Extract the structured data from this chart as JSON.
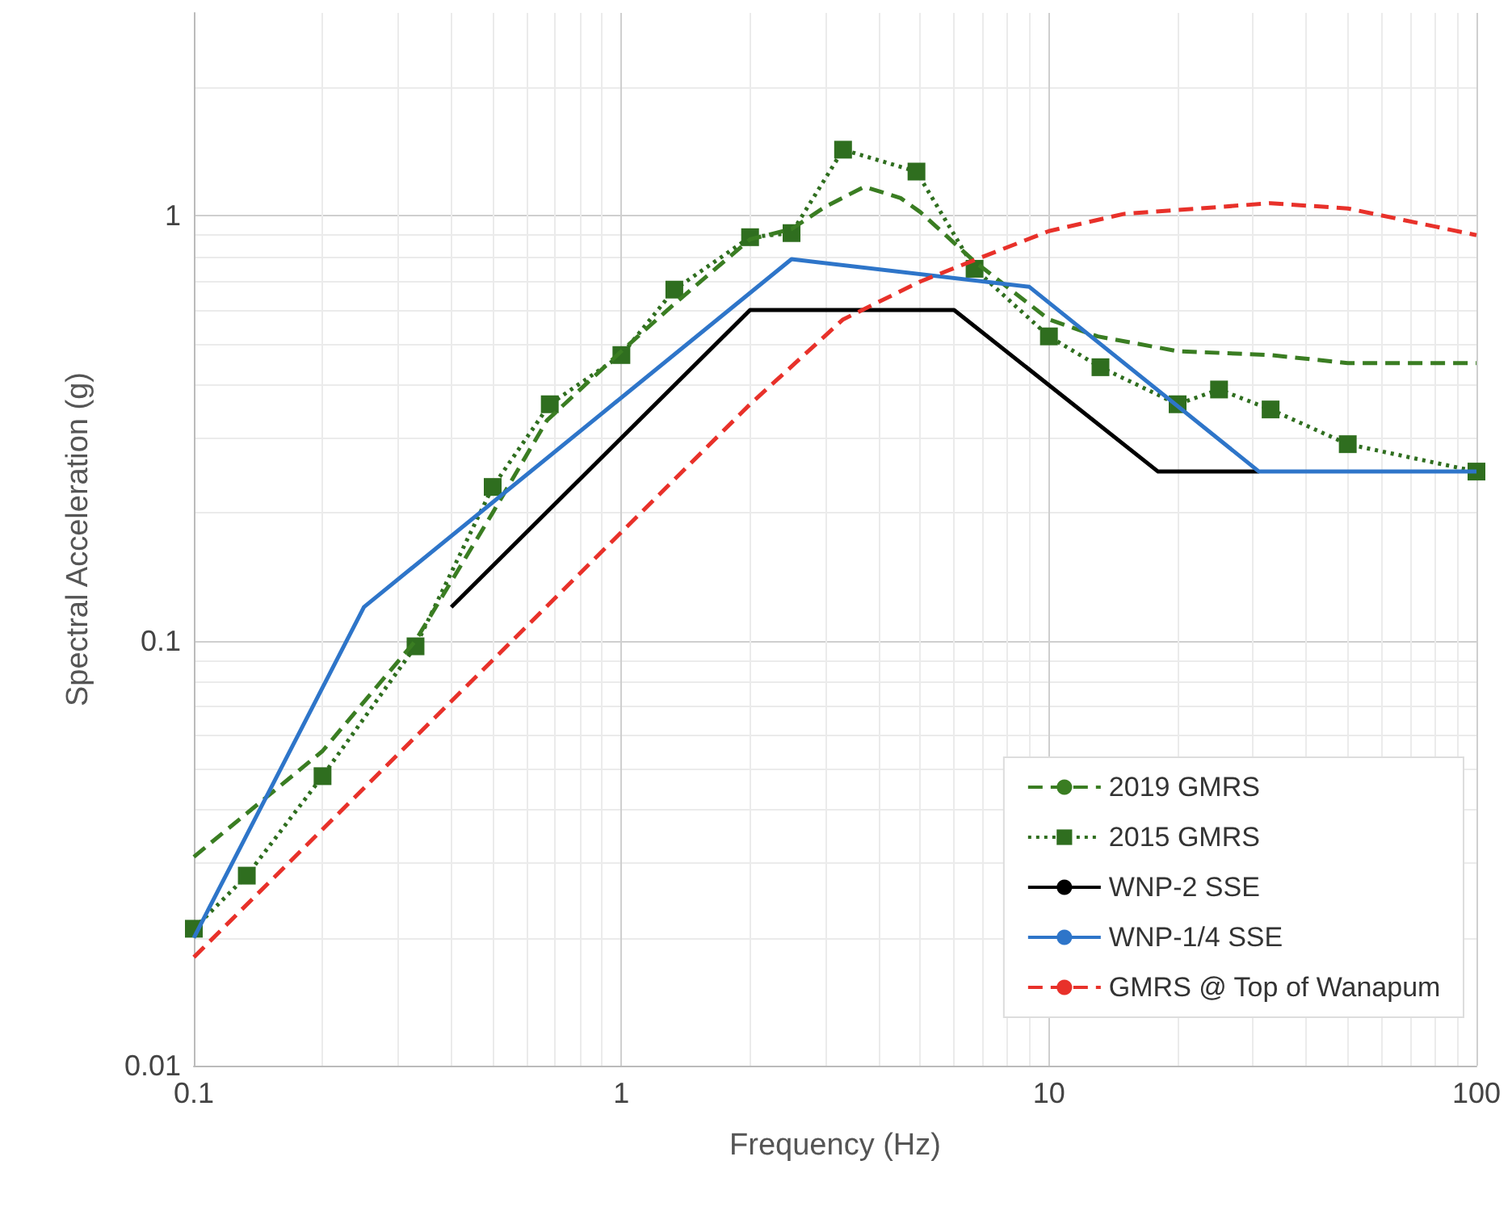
{
  "chart_data": {
    "type": "line",
    "xlabel": "Frequency (Hz)",
    "ylabel": "Spectral Acceleration (g)",
    "log": "xy",
    "grid": true,
    "legend": "bottom right",
    "xlim": [
      0.1,
      100
    ],
    "xticks": [
      0.1,
      1,
      10,
      100
    ],
    "ylim": [
      0.01,
      3
    ],
    "yticks": [
      0.01,
      0.1,
      1
    ],
    "series": [
      {
        "name": "2019 GMRS",
        "color": "#3a7d22",
        "line_style": "dashed",
        "marker": "none",
        "x": [
          0.1,
          0.2,
          0.33,
          0.5,
          0.67,
          1,
          1.33,
          2,
          2.5,
          3,
          3.7,
          4.5,
          5,
          6.7,
          10,
          13,
          20,
          33,
          50,
          100
        ],
        "values": [
          0.031,
          0.055,
          0.1,
          0.2,
          0.33,
          0.48,
          0.62,
          0.88,
          0.93,
          1.05,
          1.17,
          1.1,
          1.02,
          0.78,
          0.57,
          0.52,
          0.48,
          0.47,
          0.45,
          0.45
        ]
      },
      {
        "name": "2015 GMRS",
        "color": "#2f6e1f",
        "line_style": "dotted",
        "marker": "square",
        "x": [
          0.1,
          0.133,
          0.2,
          0.33,
          0.5,
          0.68,
          1,
          1.33,
          2,
          2.5,
          3.3,
          4.9,
          6.7,
          10,
          13.2,
          20,
          25,
          33,
          50,
          100
        ],
        "values": [
          0.021,
          0.028,
          0.048,
          0.097,
          0.23,
          0.36,
          0.47,
          0.67,
          0.89,
          0.91,
          1.43,
          1.27,
          0.75,
          0.52,
          0.44,
          0.36,
          0.39,
          0.35,
          0.29,
          0.25
        ]
      },
      {
        "name": "WNP-2 SSE",
        "color": "#000000",
        "line_style": "solid",
        "marker": "none",
        "x": [
          0.4,
          2,
          6,
          18,
          31
        ],
        "values": [
          0.12,
          0.6,
          0.6,
          0.25,
          0.25
        ]
      },
      {
        "name": "WNP-1/4 SSE",
        "color": "#2e75c9",
        "line_style": "solid",
        "marker": "none",
        "x": [
          0.1,
          0.25,
          2.5,
          9,
          31,
          100
        ],
        "values": [
          0.02,
          0.12,
          0.79,
          0.68,
          0.25,
          0.25
        ]
      },
      {
        "name": "GMRS @ Top of Wanapum",
        "color": "#e8312a",
        "line_style": "dashed",
        "marker": "none",
        "x": [
          0.1,
          0.2,
          0.5,
          1,
          2,
          3.3,
          5,
          7,
          10,
          15,
          33,
          50,
          100
        ],
        "values": [
          0.018,
          0.036,
          0.09,
          0.18,
          0.36,
          0.57,
          0.7,
          0.8,
          0.92,
          1.01,
          1.07,
          1.04,
          0.9
        ]
      }
    ]
  }
}
